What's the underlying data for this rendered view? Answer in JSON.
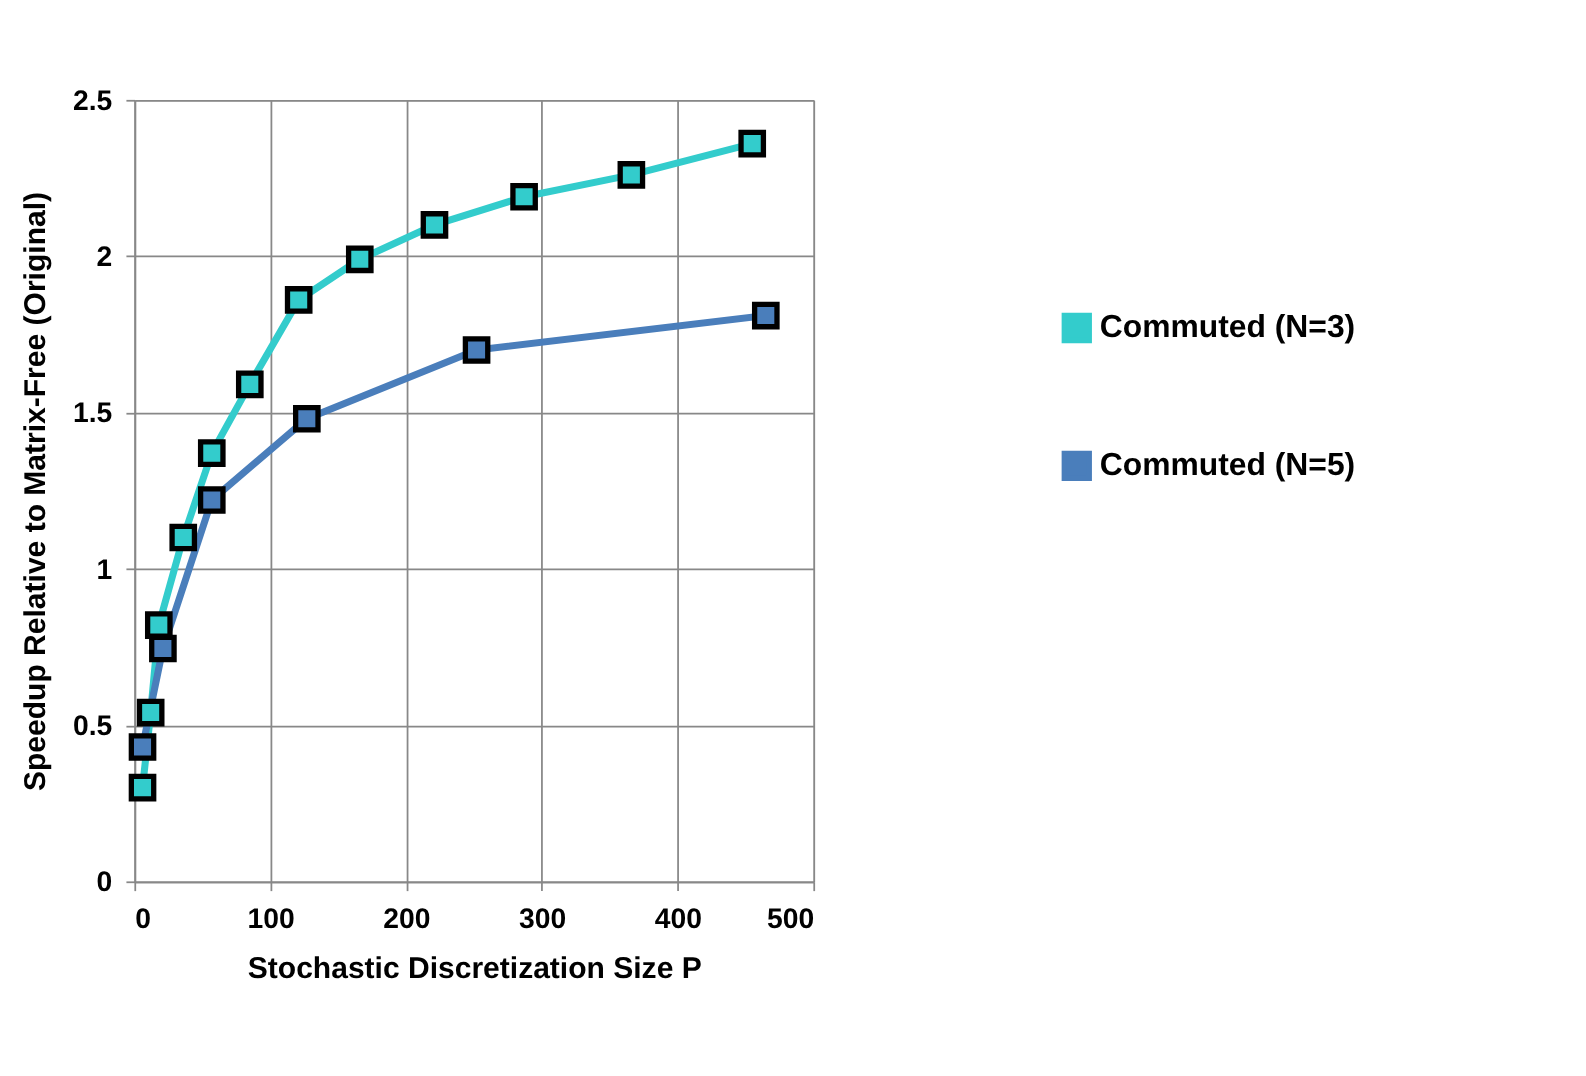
{
  "chart_data": {
    "type": "line",
    "xlabel": "Stochastic Discretization Size P",
    "ylabel": "Speedup Relative to Matrix-Free (Original)",
    "xlim": [
      0,
      500
    ],
    "xticks": [
      0,
      100,
      200,
      300,
      400,
      500
    ],
    "ylim": [
      0,
      2.5
    ],
    "yticks": [
      0,
      0.5,
      1,
      1.5,
      2,
      2.5
    ],
    "grid": true,
    "legend": "right",
    "marker": "square",
    "line_style": "solid",
    "series": [
      {
        "name": "Commuted (N=3)",
        "color": "#33cccc",
        "x": [
          6,
          12,
          18,
          36,
          57,
          85,
          121,
          166,
          221,
          287,
          366,
          455
        ],
        "values": [
          0.3,
          0.54,
          0.82,
          1.1,
          1.37,
          1.59,
          1.86,
          1.99,
          2.1,
          2.19,
          2.26,
          2.36
        ]
      },
      {
        "name": "Commuted (N=5)",
        "color": "#4a7ebb",
        "x": [
          6,
          21,
          57,
          127,
          252,
          465
        ],
        "values": [
          0.43,
          0.745,
          1.22,
          1.48,
          1.7,
          1.81
        ]
      }
    ]
  }
}
